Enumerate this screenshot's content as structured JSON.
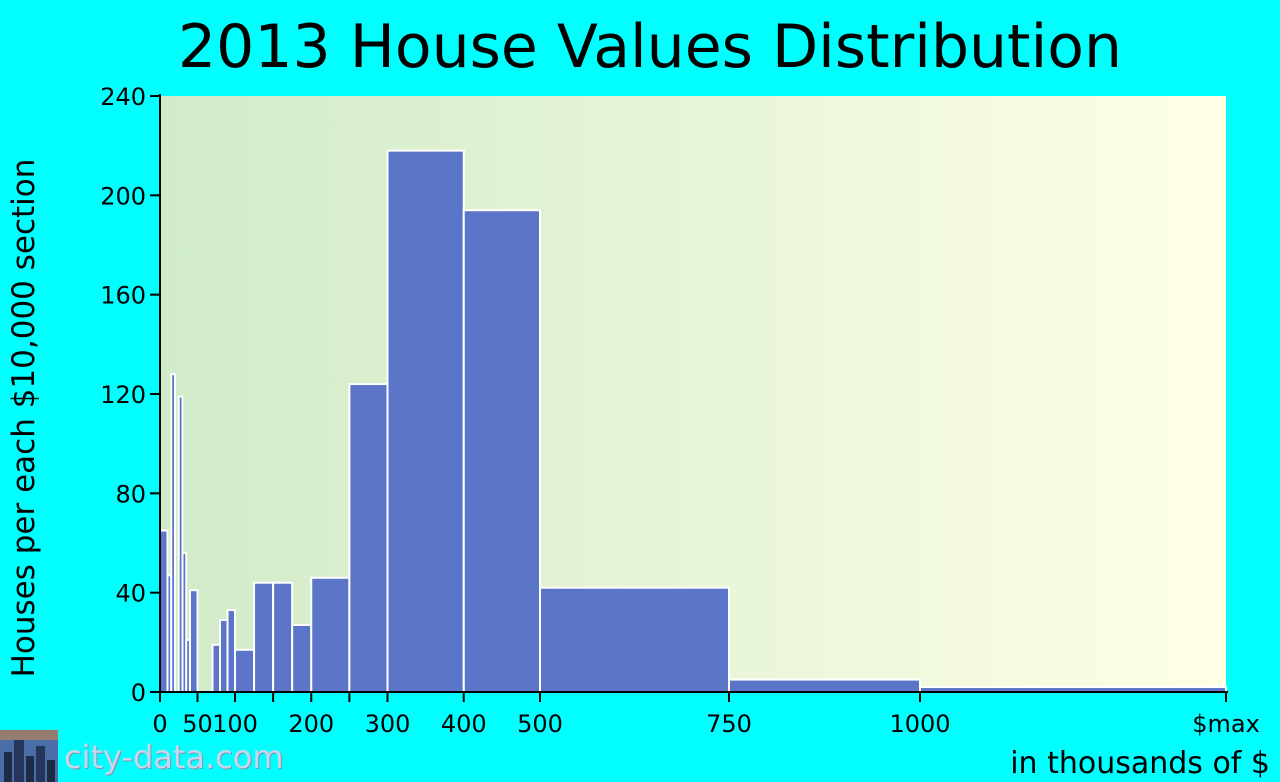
{
  "colors": {
    "background": "#00FFFF",
    "bar": "#5B76C8",
    "bar_stroke": "#FFFFFF",
    "plot_left": "#D0EBC8",
    "plot_right": "#FFFFE6"
  },
  "footer": {
    "text": "city-data.com",
    "icon": "city-skyline-icon"
  },
  "chart_data": {
    "type": "bar",
    "title": "2013 House Values Distribution",
    "ylabel": "Houses per each $10,000 section",
    "xlabel": "in thousands of $",
    "ylim": [
      0,
      240
    ],
    "xlim": [
      0,
      1400
    ],
    "y_ticks": [
      0,
      40,
      80,
      120,
      160,
      200,
      240
    ],
    "x_ticks": [
      {
        "value": 0,
        "label": "0"
      },
      {
        "value": 50,
        "label": "50"
      },
      {
        "value": 100,
        "label": "100"
      },
      {
        "value": 150,
        "label": ""
      },
      {
        "value": 200,
        "label": "200"
      },
      {
        "value": 250,
        "label": ""
      },
      {
        "value": 300,
        "label": "300"
      },
      {
        "value": 400,
        "label": "400"
      },
      {
        "value": 500,
        "label": "500"
      },
      {
        "value": 750,
        "label": "750"
      },
      {
        "value": 1000,
        "label": "1000"
      },
      {
        "value": 1400,
        "label": "$max"
      }
    ],
    "grid": false,
    "legend": "none",
    "bins": [
      {
        "x0": 0,
        "x1": 10,
        "value": 65
      },
      {
        "x0": 10,
        "x1": 15,
        "value": 47
      },
      {
        "x0": 15,
        "x1": 20,
        "value": 128
      },
      {
        "x0": 20,
        "x1": 25,
        "value": 0
      },
      {
        "x0": 25,
        "x1": 30,
        "value": 119
      },
      {
        "x0": 30,
        "x1": 35,
        "value": 56
      },
      {
        "x0": 35,
        "x1": 40,
        "value": 21
      },
      {
        "x0": 40,
        "x1": 50,
        "value": 41
      },
      {
        "x0": 50,
        "x1": 60,
        "value": 0
      },
      {
        "x0": 60,
        "x1": 70,
        "value": 0
      },
      {
        "x0": 70,
        "x1": 80,
        "value": 19
      },
      {
        "x0": 80,
        "x1": 90,
        "value": 29
      },
      {
        "x0": 90,
        "x1": 100,
        "value": 33
      },
      {
        "x0": 100,
        "x1": 125,
        "value": 17
      },
      {
        "x0": 125,
        "x1": 150,
        "value": 44
      },
      {
        "x0": 150,
        "x1": 175,
        "value": 44
      },
      {
        "x0": 175,
        "x1": 200,
        "value": 27
      },
      {
        "x0": 200,
        "x1": 250,
        "value": 46
      },
      {
        "x0": 250,
        "x1": 300,
        "value": 124
      },
      {
        "x0": 300,
        "x1": 400,
        "value": 218
      },
      {
        "x0": 400,
        "x1": 500,
        "value": 194
      },
      {
        "x0": 500,
        "x1": 750,
        "value": 42
      },
      {
        "x0": 750,
        "x1": 1000,
        "value": 5
      },
      {
        "x0": 1000,
        "x1": 1400,
        "value": 2
      }
    ]
  }
}
